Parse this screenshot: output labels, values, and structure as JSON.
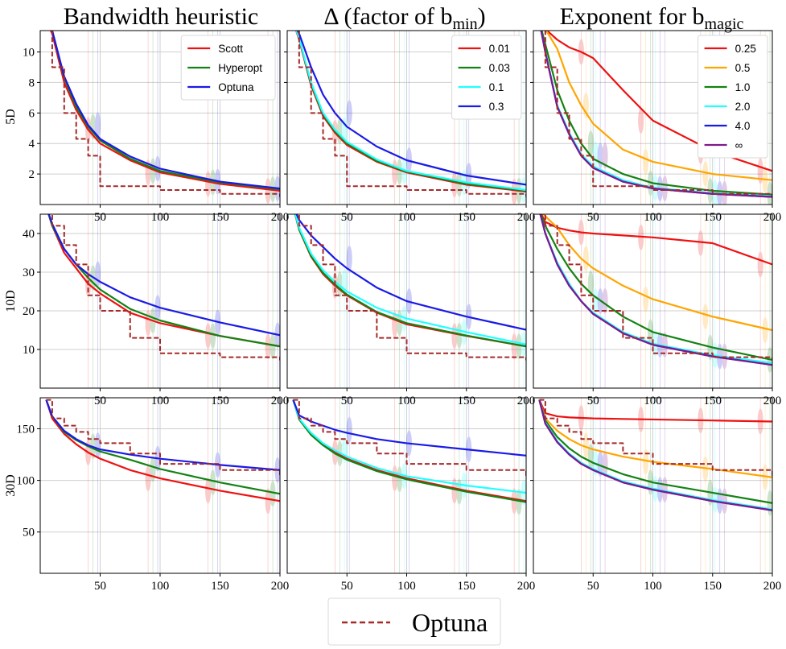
{
  "figure": {
    "column_titles": [
      "Bandwidth heuristic",
      "Δ (factor of b",
      "Exponent for b"
    ],
    "column_title_subscripts": [
      "",
      "min",
      "magic"
    ],
    "column_title_suffix": [
      "",
      ")",
      ""
    ],
    "row_labels": [
      "5D",
      "10D",
      "30D"
    ],
    "bottom_legend_label": "Optuna",
    "colors": {
      "red": "#ee1111",
      "green": "#148214",
      "blue": "#1a1ae6",
      "cyan": "#22ffff",
      "orange": "#ffa500",
      "purple": "#7d1a8c",
      "optuna": "#a52a2a",
      "grid": "#cfcfcf"
    }
  },
  "chart_data": [
    {
      "type": "line",
      "panel": "5D / Bandwidth heuristic",
      "xlim": [
        0,
        200
      ],
      "ylim": [
        0,
        11.4
      ],
      "xticks": [
        "50",
        "100",
        "150",
        "200"
      ],
      "yticks": [
        "2",
        "4",
        "6",
        "8",
        "10"
      ],
      "x": [
        5,
        10,
        20,
        30,
        40,
        50,
        75,
        100,
        150,
        200
      ],
      "legend": {
        "position": "top-right",
        "labels": [
          "Scott",
          "Hyperopt",
          "Optuna"
        ]
      },
      "series": [
        {
          "name": "Scott",
          "color": "red",
          "values": [
            12,
            11.2,
            8,
            6.2,
            4.9,
            4.0,
            2.9,
            2.1,
            1.35,
            0.9
          ]
        },
        {
          "name": "Hyperopt",
          "color": "green",
          "values": [
            12,
            11.4,
            8.3,
            6.4,
            5.1,
            4.2,
            3.0,
            2.2,
            1.45,
            1.0
          ]
        },
        {
          "name": "Optuna",
          "color": "blue",
          "values": [
            12,
            11.4,
            8.4,
            6.6,
            5.2,
            4.3,
            3.15,
            2.35,
            1.5,
            1.05
          ]
        },
        {
          "color": "optuna",
          "dashed": true,
          "step": true,
          "values": [
            12,
            9,
            6,
            4.3,
            3.2,
            1.2,
            1.2,
            0.95,
            0.7,
            0.5
          ]
        }
      ]
    },
    {
      "type": "line",
      "panel": "5D / Δ",
      "xlim": [
        0,
        200
      ],
      "ylim": [
        0,
        11.4
      ],
      "xticks": [
        "50",
        "100",
        "150",
        "200"
      ],
      "yticks": [],
      "x": [
        5,
        10,
        20,
        30,
        40,
        50,
        75,
        100,
        150,
        200
      ],
      "legend": {
        "position": "top-right",
        "labels": [
          "0.01",
          "0.03",
          "0.1",
          "0.3"
        ]
      },
      "series": [
        {
          "name": "0.01",
          "color": "red",
          "values": [
            12,
            10.8,
            7.8,
            5.8,
            4.7,
            3.9,
            2.8,
            2.1,
            1.3,
            0.85
          ]
        },
        {
          "name": "0.03",
          "color": "green",
          "values": [
            12,
            10.9,
            7.9,
            5.9,
            4.8,
            4.0,
            2.85,
            2.15,
            1.35,
            0.9
          ]
        },
        {
          "name": "0.1",
          "color": "cyan",
          "values": [
            12,
            10.9,
            8.0,
            6.0,
            4.9,
            4.1,
            2.95,
            2.2,
            1.45,
            0.95
          ]
        },
        {
          "name": "0.3",
          "color": "blue",
          "values": [
            12,
            11.2,
            9.0,
            7.2,
            6.0,
            5.1,
            3.8,
            2.9,
            1.9,
            1.3
          ]
        },
        {
          "color": "optuna",
          "dashed": true,
          "step": true,
          "values": [
            12,
            9,
            6,
            4.3,
            3.2,
            1.2,
            1.2,
            0.95,
            0.7,
            0.5
          ]
        }
      ]
    },
    {
      "type": "line",
      "panel": "5D / Exponent",
      "xlim": [
        0,
        200
      ],
      "ylim": [
        0,
        11.4
      ],
      "xticks": [
        "50",
        "100",
        "150",
        "200"
      ],
      "yticks": [],
      "x": [
        5,
        10,
        20,
        30,
        40,
        50,
        75,
        100,
        150,
        200
      ],
      "legend": {
        "position": "top-right",
        "labels": [
          "0.25",
          "0.5",
          "1.0",
          "2.0",
          "4.0",
          "∞"
        ]
      },
      "series": [
        {
          "name": "0.25",
          "color": "red",
          "values": [
            12,
            11.5,
            10.8,
            10.3,
            10.0,
            9.6,
            7.5,
            5.5,
            3.5,
            2.2
          ]
        },
        {
          "name": "0.5",
          "color": "orange",
          "values": [
            12,
            11.5,
            10.2,
            8.0,
            6.5,
            5.3,
            3.6,
            2.8,
            2.0,
            1.6
          ]
        },
        {
          "name": "1.0",
          "color": "green",
          "values": [
            12,
            10.5,
            7.5,
            5.5,
            4.0,
            3.0,
            2.0,
            1.4,
            0.9,
            0.65
          ]
        },
        {
          "name": "2.0",
          "color": "cyan",
          "values": [
            12,
            10.0,
            6.5,
            4.7,
            3.3,
            2.5,
            1.6,
            1.1,
            0.75,
            0.55
          ]
        },
        {
          "name": "4.0",
          "color": "blue",
          "values": [
            12,
            10.0,
            6.4,
            4.6,
            3.2,
            2.4,
            1.5,
            1.05,
            0.7,
            0.5
          ]
        },
        {
          "name": "∞",
          "color": "purple",
          "values": [
            12,
            10.0,
            6.4,
            4.6,
            3.2,
            2.4,
            1.5,
            1.05,
            0.7,
            0.5
          ]
        },
        {
          "color": "optuna",
          "dashed": true,
          "step": true,
          "values": [
            12,
            9,
            6,
            4.3,
            3.2,
            1.2,
            1.2,
            0.95,
            0.7,
            0.5
          ]
        }
      ]
    },
    {
      "type": "line",
      "panel": "10D / Bandwidth heuristic",
      "xlim": [
        0,
        200
      ],
      "ylim": [
        0,
        45
      ],
      "xticks": [
        "50",
        "100",
        "150",
        "200"
      ],
      "yticks": [
        "10",
        "20",
        "30",
        "40"
      ],
      "x": [
        5,
        10,
        20,
        30,
        40,
        50,
        75,
        100,
        150,
        200
      ],
      "series": [
        {
          "name": "Scott",
          "color": "red",
          "values": [
            47,
            42,
            35,
            31,
            27,
            24.5,
            19.5,
            16.8,
            13.5,
            10.8
          ]
        },
        {
          "name": "Hyperopt",
          "color": "green",
          "values": [
            47,
            42,
            36,
            32,
            28.5,
            25.5,
            20.5,
            17.5,
            13.5,
            10.8
          ]
        },
        {
          "name": "Optuna",
          "color": "blue",
          "values": [
            47,
            42.5,
            36,
            32,
            29.5,
            27.5,
            23.5,
            20.8,
            17,
            13.7
          ]
        },
        {
          "color": "optuna",
          "dashed": true,
          "step": true,
          "values": [
            47,
            42,
            37,
            32,
            24,
            20,
            13,
            9,
            8,
            7.2
          ]
        }
      ]
    },
    {
      "type": "line",
      "panel": "10D / Δ",
      "xlim": [
        0,
        200
      ],
      "ylim": [
        0,
        45
      ],
      "xticks": [
        "50",
        "100",
        "150",
        "200"
      ],
      "yticks": [],
      "x": [
        5,
        10,
        20,
        30,
        40,
        50,
        75,
        100,
        150,
        200
      ],
      "series": [
        {
          "name": "0.01",
          "color": "red",
          "values": [
            47,
            41,
            34,
            29.5,
            26.5,
            24,
            19.5,
            16.5,
            13.5,
            10.8
          ]
        },
        {
          "name": "0.03",
          "color": "green",
          "values": [
            47,
            41,
            34.2,
            29.8,
            26.8,
            24.2,
            19.7,
            16.8,
            13.6,
            10.8
          ]
        },
        {
          "name": "0.1",
          "color": "cyan",
          "values": [
            47,
            41.5,
            34.8,
            30.5,
            27.5,
            25,
            20.8,
            18,
            14.5,
            11.3
          ]
        },
        {
          "name": "0.3",
          "color": "blue",
          "values": [
            47,
            43.5,
            39.5,
            36.5,
            33.5,
            31,
            26,
            22.5,
            18.5,
            15.1
          ]
        },
        {
          "color": "optuna",
          "dashed": true,
          "step": true,
          "values": [
            47,
            42,
            37,
            32,
            24,
            20,
            13,
            9,
            8,
            7.2
          ]
        }
      ]
    },
    {
      "type": "line",
      "panel": "10D / Exponent",
      "xlim": [
        0,
        200
      ],
      "ylim": [
        0,
        45
      ],
      "xticks": [
        "50",
        "100",
        "150",
        "200"
      ],
      "yticks": [],
      "x": [
        5,
        10,
        20,
        30,
        40,
        50,
        75,
        100,
        150,
        200
      ],
      "series": [
        {
          "name": "0.25",
          "color": "red",
          "values": [
            46,
            43,
            41.5,
            40.8,
            40.3,
            40,
            39.5,
            39,
            37.5,
            32
          ]
        },
        {
          "name": "0.5",
          "color": "orange",
          "values": [
            46,
            44.5,
            41.5,
            37,
            33.5,
            31,
            26.5,
            23,
            18.5,
            15
          ]
        },
        {
          "name": "1.0",
          "color": "green",
          "values": [
            46,
            42,
            36,
            31,
            27,
            24,
            18.5,
            14.5,
            10.5,
            7.3
          ]
        },
        {
          "name": "2.0",
          "color": "cyan",
          "values": [
            46,
            40,
            32.5,
            27,
            22.5,
            19.5,
            14.5,
            11.5,
            8.5,
            6.5
          ]
        },
        {
          "name": "4.0",
          "color": "blue",
          "values": [
            46,
            40,
            32,
            26.5,
            22.5,
            19.2,
            14.2,
            11.2,
            8.2,
            6
          ]
        },
        {
          "name": "∞",
          "color": "purple",
          "values": [
            46,
            40,
            32,
            26.5,
            22.5,
            19.2,
            14.2,
            11.2,
            8.2,
            6
          ]
        },
        {
          "color": "optuna",
          "dashed": true,
          "step": true,
          "values": [
            47,
            42,
            37,
            32,
            24,
            20,
            13,
            9,
            8,
            7.2
          ]
        }
      ]
    },
    {
      "type": "line",
      "panel": "30D / Bandwidth heuristic",
      "xlim": [
        0,
        200
      ],
      "ylim": [
        10,
        180
      ],
      "xticks": [
        "50",
        "100",
        "150",
        "200"
      ],
      "yticks": [
        "50",
        "100",
        "150"
      ],
      "x": [
        5,
        10,
        20,
        30,
        40,
        50,
        75,
        100,
        150,
        200
      ],
      "series": [
        {
          "name": "Scott",
          "color": "red",
          "values": [
            178,
            160,
            145,
            135,
            127,
            121,
            110,
            102,
            90,
            80
          ]
        },
        {
          "name": "Hyperopt",
          "color": "green",
          "values": [
            178,
            162,
            147,
            139,
            133,
            128,
            120,
            111,
            98,
            87
          ]
        },
        {
          "name": "Optuna",
          "color": "blue",
          "values": [
            178,
            162,
            148,
            140,
            134,
            130,
            125,
            121,
            115,
            110
          ]
        },
        {
          "color": "optuna",
          "dashed": true,
          "step": true,
          "values": [
            178,
            160,
            153,
            147,
            140,
            136,
            126,
            116,
            110,
            104
          ]
        }
      ]
    },
    {
      "type": "line",
      "panel": "30D / Δ",
      "xlim": [
        0,
        200
      ],
      "ylim": [
        10,
        180
      ],
      "xticks": [
        "50",
        "100",
        "150",
        "200"
      ],
      "yticks": [],
      "x": [
        5,
        10,
        20,
        30,
        40,
        50,
        75,
        100,
        150,
        200
      ],
      "series": [
        {
          "name": "0.01",
          "color": "red",
          "values": [
            178,
            160,
            145,
            135,
            127,
            121,
            110,
            102,
            90,
            80
          ]
        },
        {
          "name": "0.03",
          "color": "green",
          "values": [
            178,
            159,
            144,
            134,
            126,
            120,
            109,
            101,
            89,
            79
          ]
        },
        {
          "name": "0.1",
          "color": "cyan",
          "values": [
            178,
            160,
            146,
            136,
            129,
            123,
            112,
            104,
            95,
            88
          ]
        },
        {
          "name": "0.3",
          "color": "blue",
          "values": [
            178,
            163,
            157,
            153,
            149,
            146,
            140,
            136,
            130,
            124
          ]
        },
        {
          "color": "optuna",
          "dashed": true,
          "step": true,
          "values": [
            178,
            160,
            153,
            147,
            140,
            136,
            126,
            116,
            110,
            104
          ]
        }
      ]
    },
    {
      "type": "line",
      "panel": "30D / Exponent",
      "xlim": [
        0,
        200
      ],
      "ylim": [
        10,
        180
      ],
      "xticks": [
        "50",
        "100",
        "150",
        "200"
      ],
      "yticks": [],
      "x": [
        5,
        10,
        20,
        30,
        40,
        50,
        75,
        100,
        150,
        200
      ],
      "series": [
        {
          "name": "0.25",
          "color": "red",
          "values": [
            178,
            165,
            162,
            161,
            160.5,
            160,
            159.5,
            159,
            158,
            157
          ]
        },
        {
          "name": "0.5",
          "color": "orange",
          "values": [
            178,
            160,
            148,
            140,
            134,
            130,
            123,
            118,
            111,
            103
          ]
        },
        {
          "name": "1.0",
          "color": "green",
          "values": [
            178,
            158,
            142,
            131,
            123,
            117,
            106,
            98,
            88,
            78
          ]
        },
        {
          "name": "2.0",
          "color": "cyan",
          "values": [
            178,
            156,
            138,
            126,
            117,
            111,
            99,
            92,
            81,
            72
          ]
        },
        {
          "name": "4.0",
          "color": "blue",
          "values": [
            178,
            155,
            137,
            125,
            116,
            110,
            98,
            91,
            80,
            71
          ]
        },
        {
          "name": "∞",
          "color": "purple",
          "values": [
            178,
            155,
            137,
            125,
            116,
            110,
            98,
            91,
            80,
            71
          ]
        },
        {
          "color": "optuna",
          "dashed": true,
          "step": true,
          "values": [
            178,
            160,
            153,
            147,
            140,
            136,
            126,
            116,
            110,
            104
          ]
        }
      ]
    }
  ]
}
